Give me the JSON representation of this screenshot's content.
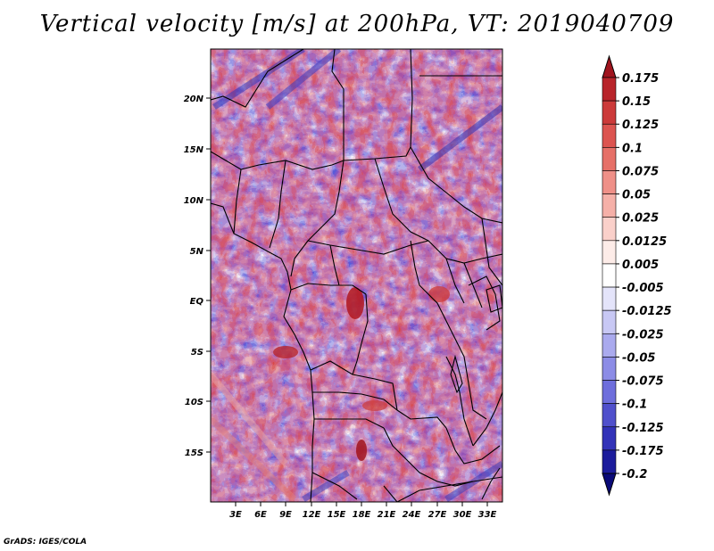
{
  "title": "Vertical velocity [m/s] at 200hPa, VT: 2019040709",
  "credit": "GrADS: IGES/COLA",
  "lat_labels": [
    "20N",
    "15N",
    "10N",
    "5N",
    "EQ",
    "5S",
    "10S",
    "15S"
  ],
  "lon_labels": [
    "3E",
    "6E",
    "9E",
    "12E",
    "15E",
    "18E",
    "21E",
    "24E",
    "27E",
    "30E",
    "33E"
  ],
  "colorbar": {
    "levels": [
      "0.175",
      "0.15",
      "0.125",
      "0.1",
      "0.075",
      "0.05",
      "0.025",
      "0.0125",
      "0.005",
      "-0.005",
      "-0.0125",
      "-0.025",
      "-0.05",
      "-0.075",
      "-0.1",
      "-0.125",
      "-0.175",
      "-0.2"
    ],
    "colors": [
      "#a0141e",
      "#b8242a",
      "#cc3a3a",
      "#dc5450",
      "#e67068",
      "#ef9088",
      "#f5b0a8",
      "#fad0ca",
      "#fdece8",
      "#ffffff",
      "#e4e4fa",
      "#c8c8f4",
      "#aaaaee",
      "#8c8ce6",
      "#6e6edc",
      "#5050cc",
      "#3232b8",
      "#1c1c9c",
      "#0a0a78"
    ]
  }
}
